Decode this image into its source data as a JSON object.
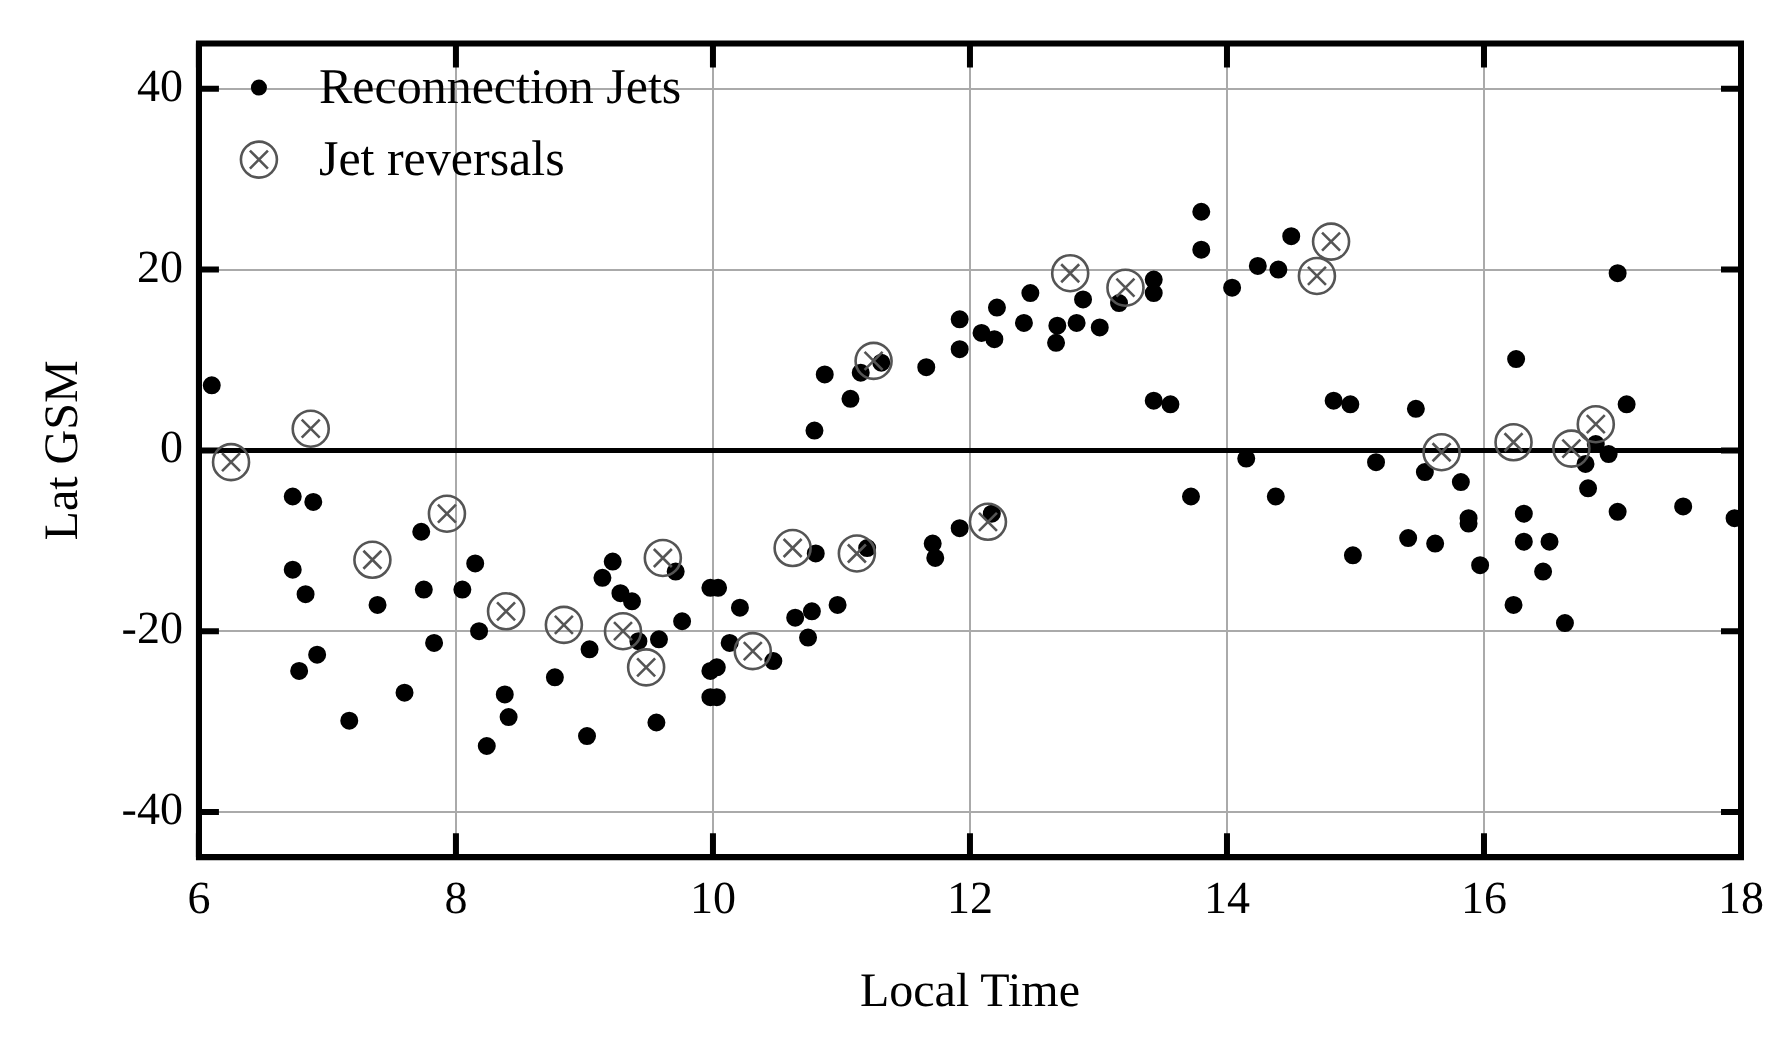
{
  "chart_data": {
    "type": "scatter",
    "xlabel": "Local Time",
    "ylabel": "Lat GSM",
    "xlim": [
      6,
      18
    ],
    "xticks": [
      6,
      8,
      10,
      12,
      14,
      16,
      18
    ],
    "ylim": [
      -45,
      45
    ],
    "yticks": [
      -40,
      -20,
      0,
      20,
      40
    ],
    "grid": true,
    "legend": "top left",
    "ref_lines": [
      {
        "axis": "y",
        "value": 0,
        "color": "#000000",
        "line_style": "solid"
      }
    ],
    "series": [
      {
        "name": "Reconnection Jets",
        "color": "#000000",
        "marker": "circle",
        "x": [
          6.1,
          6.73,
          6.89,
          6.73,
          6.83,
          6.78,
          6.92,
          7.17,
          7.39,
          7.6,
          7.73,
          7.75,
          7.83,
          8.05,
          8.15,
          8.18,
          8.38,
          8.41,
          8.24,
          8.77,
          9.02,
          9.04,
          9.14,
          9.22,
          9.28,
          9.37,
          9.42,
          9.58,
          9.56,
          9.71,
          9.76,
          9.98,
          9.98,
          9.98,
          10.04,
          10.21,
          10.03,
          10.13,
          10.03,
          10.47,
          10.64,
          10.77,
          10.74,
          10.97,
          10.8,
          11.2,
          11.71,
          11.73,
          11.92,
          12.17,
          10.79,
          11.07,
          10.87,
          11.15,
          11.31,
          11.66,
          11.92,
          11.92,
          12.09,
          12.19,
          12.21,
          12.42,
          12.47,
          12.67,
          12.68,
          12.83,
          13.01,
          12.88,
          13.16,
          13.43,
          13.43,
          13.43,
          13.56,
          13.72,
          13.8,
          13.8,
          14.04,
          14.24,
          14.4,
          14.5,
          14.15,
          14.38,
          14.83,
          14.96,
          14.98,
          15.16,
          15.47,
          15.41,
          15.62,
          15.54,
          15.82,
          15.88,
          15.88,
          15.97,
          16.25,
          16.23,
          16.31,
          16.31,
          16.51,
          16.46,
          16.63,
          16.79,
          16.81,
          16.87,
          16.97,
          17.04,
          17.11,
          17.04,
          17.55,
          17.95
        ],
        "values": [
          7.2,
          -5.1,
          -5.7,
          -13.2,
          -15.9,
          -24.4,
          -22.6,
          -29.9,
          -17.1,
          -26.8,
          -9,
          -15.4,
          -21.3,
          -15.4,
          -12.5,
          -20,
          -27,
          -29.5,
          -32.7,
          -25.1,
          -31.6,
          -22,
          -14.1,
          -12.3,
          -15.8,
          -16.7,
          -21.1,
          -20.9,
          -30.1,
          -13.4,
          -18.9,
          -15.2,
          -24.4,
          -27.3,
          -15.2,
          -17.4,
          -24,
          -21.3,
          -27.3,
          -23.3,
          -18.5,
          -17.8,
          -20.7,
          -17.1,
          -11.4,
          -10.8,
          -10.3,
          -11.9,
          -8.6,
          -7,
          2.2,
          5.7,
          8.4,
          8.6,
          9.7,
          9.2,
          11.2,
          14.5,
          13,
          12.3,
          15.8,
          14.1,
          17.4,
          11.9,
          13.8,
          14.1,
          13.6,
          16.7,
          16.3,
          18.9,
          17.4,
          5.5,
          5.1,
          -5.1,
          26.4,
          22.2,
          18,
          20.4,
          20,
          23.7,
          -0.9,
          -5.1,
          5.5,
          5.1,
          -11.6,
          -1.3,
          4.6,
          -9.7,
          -10.3,
          -2.4,
          -3.5,
          -7.5,
          -8.1,
          -12.7,
          10.1,
          -17.1,
          -7,
          -10.1,
          -10.1,
          -13.4,
          -19.1,
          -1.5,
          -4.2,
          0.7,
          -0.4,
          19.6,
          5.1,
          -6.8,
          -6.2,
          -7.5
        ]
      },
      {
        "name": "Jet reversals",
        "color": "#555555",
        "marker": "circle",
        "x": [
          6.25,
          6.87,
          7.35,
          7.93,
          8.39,
          8.84,
          9.3,
          9.61,
          9.48,
          10.31,
          10.62,
          11.12,
          11.25,
          12.14,
          12.78,
          13.21,
          14.81,
          14.7,
          15.67,
          16.23,
          16.68,
          16.87
        ],
        "values": [
          -1.3,
          2.4,
          -12.1,
          -7,
          -17.8,
          -19.3,
          -20,
          -11.9,
          -24,
          -22.2,
          -10.8,
          -11.4,
          9.9,
          -7.9,
          19.6,
          18,
          23.1,
          19.3,
          -0.2,
          0.9,
          0.2,
          2.9
        ]
      }
    ]
  }
}
